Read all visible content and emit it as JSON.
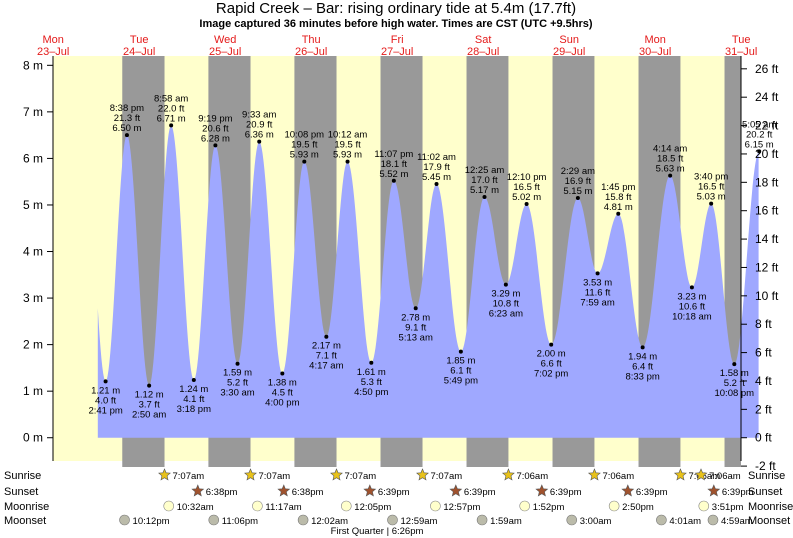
{
  "chart_data": {
    "type": "area",
    "title": "Rapid Creek – Bar: rising  ordinary tide at 5.4m (17.7ft)",
    "subtitle": "Image captured 36 minutes before high water. Times are CST (UTC +9.5hrs)",
    "days": [
      {
        "dow": "Mon",
        "date": "23–Jul"
      },
      {
        "dow": "Tue",
        "date": "24–Jul"
      },
      {
        "dow": "Wed",
        "date": "25–Jul"
      },
      {
        "dow": "Thu",
        "date": "26–Jul"
      },
      {
        "dow": "Fri",
        "date": "27–Jul"
      },
      {
        "dow": "Sat",
        "date": "28–Jul"
      },
      {
        "dow": "Sun",
        "date": "29–Jul"
      },
      {
        "dow": "Mon",
        "date": "30–Jul"
      },
      {
        "dow": "Tue",
        "date": "31–Jul"
      }
    ],
    "y_left": {
      "unit": "m",
      "ticks": [
        0,
        1,
        2,
        3,
        4,
        5,
        6,
        7,
        8
      ],
      "range": [
        -0.5,
        8.2
      ]
    },
    "y_right": {
      "unit": "ft",
      "ticks": [
        -2,
        0,
        2,
        4,
        6,
        8,
        10,
        12,
        14,
        16,
        18,
        20,
        22,
        24,
        26
      ]
    },
    "x_range_hours": [
      0,
      192
    ],
    "night_bands_hours": [
      [
        19.33,
        31.12
      ],
      [
        43.37,
        55.12
      ],
      [
        67.37,
        79.12
      ],
      [
        91.4,
        103.12
      ],
      [
        115.4,
        127.1
      ],
      [
        139.4,
        151.1
      ],
      [
        163.4,
        175.1
      ],
      [
        187.4,
        192
      ]
    ],
    "tides": [
      {
        "h": 14.68,
        "m": 1.21,
        "ft": "4.0 ft",
        "time": "2:41 pm",
        "type": "low"
      },
      {
        "h": 20.63,
        "m": 6.5,
        "ft": "21.3 ft",
        "time": "8:38 pm",
        "type": "high"
      },
      {
        "h": 26.83,
        "m": 1.12,
        "ft": "3.7 ft",
        "time": "2:50 am",
        "type": "low"
      },
      {
        "h": 32.97,
        "m": 6.71,
        "ft": "22.0 ft",
        "time": "8:58 am",
        "type": "high"
      },
      {
        "h": 39.3,
        "m": 1.24,
        "ft": "4.1 ft",
        "time": "3:18 pm",
        "type": "low"
      },
      {
        "h": 45.32,
        "m": 6.28,
        "ft": "20.6 ft",
        "time": "9:19 pm",
        "type": "high"
      },
      {
        "h": 51.5,
        "m": 1.59,
        "ft": "5.2 ft",
        "time": "3:30 am",
        "type": "low"
      },
      {
        "h": 57.55,
        "m": 6.36,
        "ft": "20.9 ft",
        "time": "9:33 am",
        "type": "high"
      },
      {
        "h": 64.0,
        "m": 1.38,
        "ft": "4.5 ft",
        "time": "4:00 pm",
        "type": "low"
      },
      {
        "h": 70.13,
        "m": 5.93,
        "ft": "19.5 ft",
        "time": "10:08 pm",
        "type": "high"
      },
      {
        "h": 76.28,
        "m": 2.17,
        "ft": "7.1 ft",
        "time": "4:17 am",
        "type": "low"
      },
      {
        "h": 82.2,
        "m": 5.93,
        "ft": "19.5 ft",
        "time": "10:12 am",
        "type": "high"
      },
      {
        "h": 88.83,
        "m": 1.61,
        "ft": "5.3 ft",
        "time": "4:50 pm",
        "type": "low"
      },
      {
        "h": 95.12,
        "m": 5.52,
        "ft": "18.1 ft",
        "time": "11:07 pm",
        "type": "high"
      },
      {
        "h": 101.22,
        "m": 2.78,
        "ft": "9.1 ft",
        "time": "5:13 am",
        "type": "low"
      },
      {
        "h": 107.03,
        "m": 5.45,
        "ft": "17.9 ft",
        "time": "11:02 am",
        "type": "high"
      },
      {
        "h": 113.82,
        "m": 1.85,
        "ft": "6.1 ft",
        "time": "5:49 pm",
        "type": "low"
      },
      {
        "h": 120.42,
        "m": 5.17,
        "ft": "17.0 ft",
        "time": "12:25 am",
        "type": "high"
      },
      {
        "h": 126.38,
        "m": 3.29,
        "ft": "10.8 ft",
        "time": "6:23 am",
        "type": "low"
      },
      {
        "h": 132.17,
        "m": 5.02,
        "ft": "16.5 ft",
        "time": "12:10 pm",
        "type": "high"
      },
      {
        "h": 139.03,
        "m": 2.0,
        "ft": "6.6 ft",
        "time": "7:02 pm",
        "type": "low"
      },
      {
        "h": 146.48,
        "m": 5.15,
        "ft": "16.9 ft",
        "time": "2:29 am",
        "type": "high"
      },
      {
        "h": 151.98,
        "m": 3.53,
        "ft": "11.6 ft",
        "time": "7:59 am",
        "type": "low"
      },
      {
        "h": 157.75,
        "m": 4.81,
        "ft": "15.8 ft",
        "time": "1:45 pm",
        "type": "high"
      },
      {
        "h": 164.55,
        "m": 1.94,
        "ft": "6.4 ft",
        "time": "8:33 pm",
        "type": "low"
      },
      {
        "h": 172.23,
        "m": 5.63,
        "ft": "18.5 ft",
        "time": "4:14 am",
        "type": "high"
      },
      {
        "h": 178.3,
        "m": 3.23,
        "ft": "10.6 ft",
        "time": "10:18 am",
        "type": "low"
      },
      {
        "h": 183.67,
        "m": 5.03,
        "ft": "16.5 ft",
        "time": "3:40 pm",
        "type": "high"
      },
      {
        "h": 190.13,
        "m": 1.58,
        "ft": "5.2 ft",
        "time": "10:08 pm",
        "type": "low"
      },
      {
        "h": 197.08,
        "m": 6.15,
        "ft": "20.2 ft",
        "time": "5:05 am",
        "type": "high"
      }
    ],
    "rows": {
      "sunrise_label": "Sunrise",
      "sunset_label": "Sunset",
      "moonrise_label": "Moonrise",
      "moonset_label": "Moonset",
      "sunrise": [
        {
          "h": 31.12,
          "t": "7:07am"
        },
        {
          "h": 55.12,
          "t": "7:07am"
        },
        {
          "h": 79.12,
          "t": "7:07am"
        },
        {
          "h": 103.12,
          "t": "7:07am"
        },
        {
          "h": 127.1,
          "t": "7:06am"
        },
        {
          "h": 151.1,
          "t": "7:06am"
        },
        {
          "h": 175.1,
          "t": "7:06am"
        },
        {
          "h": 199.1,
          "t": "7:06am"
        }
      ],
      "sunset": [
        {
          "h": 42.63,
          "t": "6:38pm"
        },
        {
          "h": 66.63,
          "t": "6:38pm"
        },
        {
          "h": 90.65,
          "t": "6:39pm"
        },
        {
          "h": 114.65,
          "t": "6:39pm"
        },
        {
          "h": 138.65,
          "t": "6:39pm"
        },
        {
          "h": 162.65,
          "t": "6:39pm"
        },
        {
          "h": 186.65,
          "t": "6:39pm"
        }
      ],
      "moonrise": [
        {
          "h": 34.53,
          "t": "10:32am"
        },
        {
          "h": 59.28,
          "t": "11:17am"
        },
        {
          "h": 84.08,
          "t": "12:05pm"
        },
        {
          "h": 108.95,
          "t": "12:57pm"
        },
        {
          "h": 133.87,
          "t": "1:52pm"
        },
        {
          "h": 158.83,
          "t": "2:50pm"
        },
        {
          "h": 183.85,
          "t": "3:51pm"
        }
      ],
      "moonset": [
        {
          "h": 22.2,
          "t": "10:12pm"
        },
        {
          "h": 47.1,
          "t": "11:06pm"
        },
        {
          "h": 72.03,
          "t": "12:02am"
        },
        {
          "h": 96.98,
          "t": "12:59am"
        },
        {
          "h": 121.98,
          "t": "1:59am"
        },
        {
          "h": 147.0,
          "t": "3:00am"
        },
        {
          "h": 172.02,
          "t": "4:01am"
        },
        {
          "h": 197.0,
          "t": "4:59am"
        }
      ],
      "moon_phase": {
        "h": 90.43,
        "t": "First Quarter | 6:26pm"
      }
    },
    "colors": {
      "day": "#ffffcc",
      "night": "#999999",
      "tide": "#9fa8ff",
      "day_label": "#e41a1a",
      "sun": "#e8c21a",
      "sunset": "#a0522d",
      "moonrise": "#ffffcc",
      "moonset": "#bbbbaa"
    }
  }
}
